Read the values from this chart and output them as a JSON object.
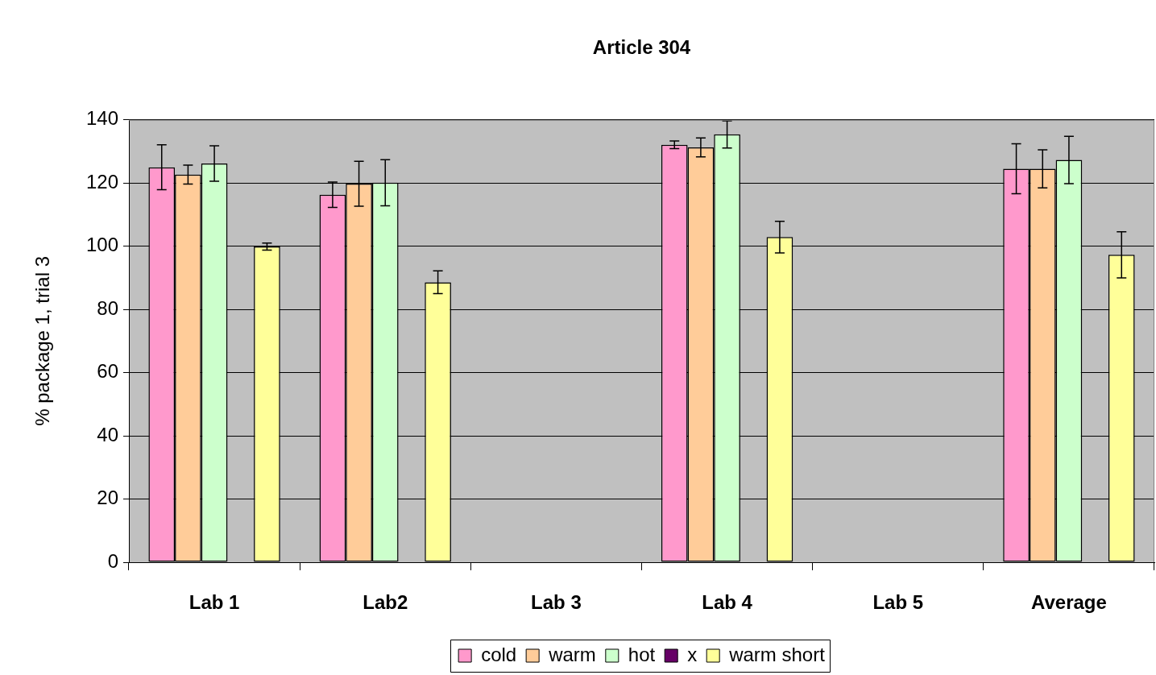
{
  "chart_data": {
    "type": "bar",
    "title": "Article 304",
    "ylabel": "% package 1, trial 3",
    "categories": [
      "Lab 1",
      "Lab2",
      "Lab 3",
      "Lab 4",
      "Lab 5",
      "Average"
    ],
    "series": [
      {
        "name": "cold",
        "color": "#ff99cc",
        "values": [
          125,
          116.3,
          0,
          132.1,
          0,
          124.5
        ],
        "errors": [
          7.1,
          4,
          null,
          1.2,
          null,
          7.9
        ]
      },
      {
        "name": "warm",
        "color": "#ffcc99",
        "values": [
          122.7,
          119.8,
          0,
          131.3,
          0,
          124.5
        ],
        "errors": [
          3,
          7.1,
          null,
          3,
          null,
          6
        ]
      },
      {
        "name": "hot",
        "color": "#ccffcc",
        "values": [
          126.2,
          120.1,
          0,
          135.4,
          0,
          127.3
        ],
        "errors": [
          5.6,
          7.3,
          null,
          4.3,
          null,
          7.5
        ]
      },
      {
        "name": "x",
        "color": "#660066",
        "values": [
          null,
          null,
          null,
          null,
          null,
          null
        ]
      },
      {
        "name": "warm short",
        "color": "#ffff99",
        "values": [
          99.9,
          88.6,
          0,
          102.9,
          0,
          97.3
        ],
        "errors": [
          1.1,
          3.6,
          null,
          5,
          null,
          7.3
        ]
      }
    ],
    "ylim": [
      0,
      140
    ],
    "yticks": [
      0,
      20,
      40,
      60,
      80,
      100,
      120,
      140
    ],
    "grid": "y",
    "legend": "bottom"
  }
}
